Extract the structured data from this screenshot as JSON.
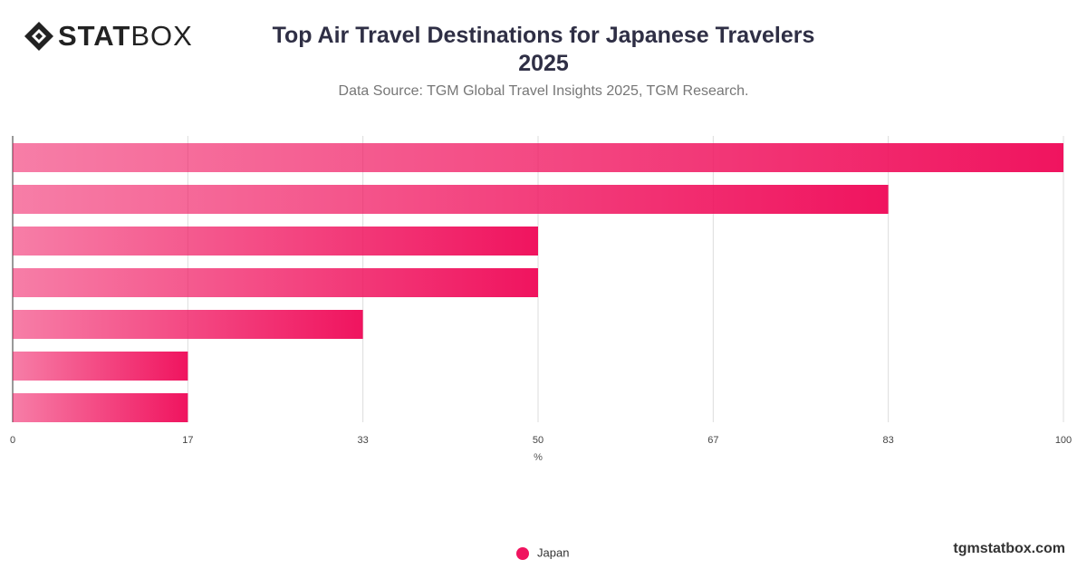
{
  "header": {
    "logo_bold": "STAT",
    "logo_light": "BOX"
  },
  "chart_data": {
    "type": "bar",
    "orientation": "horizontal",
    "title": "Top Air Travel Destinations for Japanese Travelers 2025",
    "subtitle": "Data Source: TGM Global Travel Insights 2025, TGM Research.",
    "x_label": "%",
    "categories": [
      null,
      null,
      null,
      null,
      null,
      null,
      null
    ],
    "series": [
      {
        "name": "Japan",
        "color": "#f0145f",
        "values": [
          100,
          83.33,
          50,
          50,
          33.33,
          16.67,
          16.67
        ]
      }
    ],
    "xlim": [
      0,
      100
    ],
    "xticks": [
      0,
      {
        "value": 16.67,
        "label": "17"
      },
      {
        "value": 33.33,
        "label": "33"
      },
      50,
      {
        "value": 66.67,
        "label": "67"
      },
      {
        "value": 83.33,
        "label": "83"
      },
      100
    ],
    "grid": true,
    "legend": "bottom"
  },
  "footer": {
    "website": "tgmstatbox.com"
  }
}
